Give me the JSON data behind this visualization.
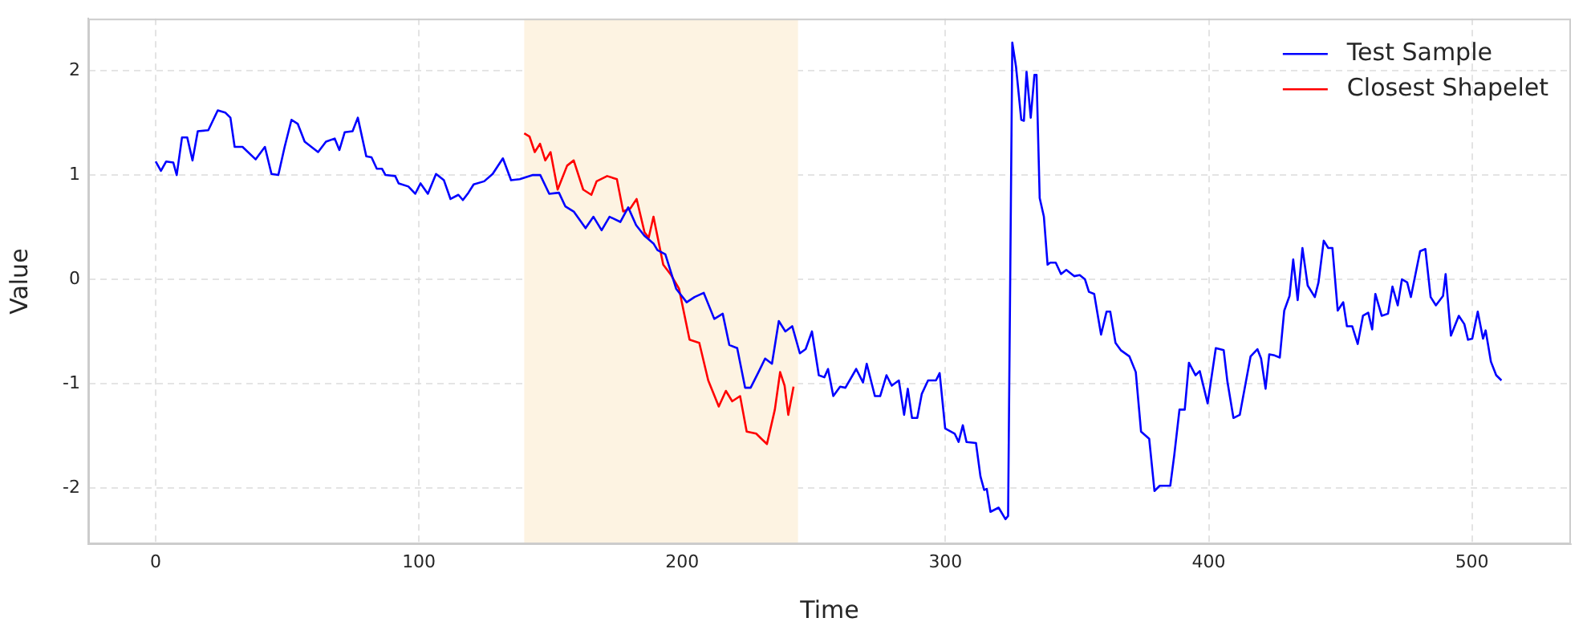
{
  "chart_data": {
    "type": "line",
    "xlabel": "Time",
    "ylabel": "Value",
    "xlim": [
      -25.6,
      537.6
    ],
    "ylim": [
      -2.54,
      2.5
    ],
    "xticks": [
      0,
      100,
      200,
      300,
      400,
      500
    ],
    "yticks": [
      -2,
      -1,
      0,
      1,
      2
    ],
    "grid": true,
    "legend": "top right",
    "marker": "none",
    "line_style": "solid",
    "bands": [
      {
        "axis": "x",
        "from": 140,
        "to": 244,
        "color": "#fdf3e2"
      }
    ],
    "series": [
      {
        "name": "Test Sample",
        "color": "#0000ff",
        "x": [
          0,
          2,
          4,
          6.7,
          8,
          10,
          12,
          14,
          16,
          20,
          23.6,
          26.4,
          28.4,
          30,
          33,
          38,
          41.5,
          44,
          46.6,
          49,
          51.6,
          54,
          56.6,
          61.7,
          64.7,
          68,
          69.8,
          71.8,
          74.8,
          76.8,
          80,
          82,
          84,
          86,
          87.3,
          91,
          92.3,
          96,
          98.6,
          100.6,
          103.4,
          106.5,
          109.5,
          112,
          115,
          116.7,
          118.8,
          120.8,
          124.8,
          128,
          131.9,
          135,
          138.3,
          143.3,
          146.1,
          149.5,
          153.2,
          155.6,
          158.8,
          163.3,
          166.3,
          169.4,
          172.4,
          176.5,
          179.5,
          182.5,
          185.6,
          189.2,
          190.6,
          193.6,
          197.7,
          201.7,
          204.7,
          208.2,
          212.2,
          215.4,
          217.9,
          220.9,
          223.9,
          226,
          229,
          231.5,
          234.1,
          236.7,
          239.2,
          241.8,
          244.7,
          246.9,
          249.3,
          251.9,
          254,
          255.4,
          257.4,
          260,
          262,
          266.1,
          268.7,
          270.1,
          273.2,
          275.2,
          277.6,
          279.6,
          282.3,
          284.3,
          285.7,
          287.3,
          289.3,
          291,
          293.4,
          296.4,
          297.8,
          299.9,
          303.5,
          305,
          306.6,
          308,
          311.6,
          313.3,
          314.7,
          315.7,
          317.1,
          320.2,
          322.8,
          323.8,
          325.4,
          326.8,
          328.8,
          329.8,
          330.8,
          332.4,
          333.8,
          334.6,
          335.8,
          337.4,
          338.8,
          339.8,
          341.9,
          343.9,
          345.9,
          348.9,
          351,
          353,
          354.5,
          356.5,
          359.1,
          361.2,
          362.6,
          364.6,
          366.6,
          369.9,
          372.3,
          374.3,
          377.4,
          379.4,
          381.4,
          385.4,
          386.9,
          388.9,
          390.9,
          392.5,
          395,
          396.6,
          399.6,
          402.7,
          405.7,
          407.1,
          409.4,
          411.8,
          415.9,
          418.5,
          419.9,
          421.6,
          423,
          425,
          427,
          428.7,
          430.7,
          432.1,
          433.8,
          435.6,
          437.6,
          440.3,
          441.7,
          443.7,
          445.4,
          447,
          449,
          451.1,
          452.5,
          454.5,
          456.6,
          458.6,
          460.6,
          462.1,
          463.3,
          465.7,
          468.1,
          469.8,
          471.8,
          473.4,
          475.4,
          476.8,
          480.3,
          482.3,
          484.3,
          486.3,
          489,
          490,
          492,
          495,
          497.1,
          498.5,
          500.1,
          502.2,
          504.2,
          505.2,
          507.2,
          509.2,
          511.2
        ],
        "values": [
          1.13,
          1.04,
          1.13,
          1.12,
          1.0,
          1.36,
          1.36,
          1.14,
          1.42,
          1.43,
          1.62,
          1.6,
          1.55,
          1.27,
          1.27,
          1.15,
          1.27,
          1.01,
          1.0,
          1.27,
          1.53,
          1.49,
          1.32,
          1.22,
          1.32,
          1.35,
          1.24,
          1.41,
          1.42,
          1.55,
          1.18,
          1.17,
          1.06,
          1.06,
          1.0,
          0.99,
          0.92,
          0.89,
          0.82,
          0.92,
          0.82,
          1.01,
          0.95,
          0.77,
          0.81,
          0.76,
          0.83,
          0.91,
          0.94,
          1.01,
          1.16,
          0.95,
          0.96,
          1.0,
          1.0,
          0.82,
          0.83,
          0.7,
          0.65,
          0.49,
          0.6,
          0.47,
          0.6,
          0.55,
          0.69,
          0.52,
          0.42,
          0.34,
          0.28,
          0.24,
          -0.09,
          -0.22,
          -0.17,
          -0.13,
          -0.38,
          -0.33,
          -0.63,
          -0.66,
          -1.04,
          -1.04,
          -0.89,
          -0.76,
          -0.81,
          -0.4,
          -0.5,
          -0.45,
          -0.71,
          -0.67,
          -0.5,
          -0.92,
          -0.94,
          -0.86,
          -1.12,
          -1.03,
          -1.04,
          -0.86,
          -0.99,
          -0.81,
          -1.12,
          -1.12,
          -0.92,
          -1.02,
          -0.97,
          -1.3,
          -1.05,
          -1.33,
          -1.33,
          -1.1,
          -0.97,
          -0.97,
          -0.9,
          -1.43,
          -1.48,
          -1.56,
          -1.4,
          -1.56,
          -1.57,
          -1.89,
          -2.02,
          -2.01,
          -2.23,
          -2.19,
          -2.3,
          -2.27,
          2.27,
          2.04,
          1.53,
          1.52,
          1.99,
          1.55,
          1.96,
          1.96,
          0.78,
          0.6,
          0.14,
          0.16,
          0.16,
          0.05,
          0.09,
          0.03,
          0.04,
          0.0,
          -0.12,
          -0.14,
          -0.53,
          -0.31,
          -0.31,
          -0.61,
          -0.68,
          -0.74,
          -0.89,
          -1.46,
          -1.53,
          -2.03,
          -1.98,
          -1.98,
          -1.69,
          -1.25,
          -1.25,
          -0.8,
          -0.92,
          -0.88,
          -1.19,
          -0.66,
          -0.68,
          -0.98,
          -1.33,
          -1.3,
          -0.74,
          -0.67,
          -0.76,
          -1.05,
          -0.72,
          -0.73,
          -0.75,
          -0.3,
          -0.16,
          0.19,
          -0.2,
          0.3,
          -0.06,
          -0.17,
          -0.03,
          0.37,
          0.3,
          0.3,
          -0.3,
          -0.22,
          -0.45,
          -0.45,
          -0.62,
          -0.35,
          -0.32,
          -0.48,
          -0.14,
          -0.35,
          -0.33,
          -0.07,
          -0.25,
          0.0,
          -0.03,
          -0.17,
          0.27,
          0.29,
          -0.17,
          -0.25,
          -0.16,
          0.05,
          -0.54,
          -0.35,
          -0.43,
          -0.58,
          -0.57,
          -0.31,
          -0.57,
          -0.49,
          -0.79,
          -0.92,
          -0.97
        ]
      },
      {
        "name": "Closest Shapelet",
        "color": "#ff0000",
        "x": [
          140,
          142,
          144,
          146,
          148,
          150,
          152.7,
          156.3,
          158.8,
          162.4,
          165.5,
          167.5,
          171.5,
          175.2,
          177.6,
          180.3,
          182.7,
          185.7,
          187.3,
          189.1,
          192.8,
          195.8,
          198.8,
          202.8,
          206.5,
          209.9,
          213.9,
          216.6,
          219,
          222,
          224.5,
          228.1,
          230.1,
          232.2,
          235.2,
          237.2,
          238.9,
          240.3,
          242.3
        ],
        "values": [
          1.4,
          1.37,
          1.22,
          1.3,
          1.14,
          1.22,
          0.86,
          1.09,
          1.14,
          0.86,
          0.81,
          0.94,
          0.99,
          0.96,
          0.65,
          0.68,
          0.77,
          0.45,
          0.4,
          0.6,
          0.14,
          0.04,
          -0.09,
          -0.58,
          -0.61,
          -0.97,
          -1.22,
          -1.07,
          -1.17,
          -1.12,
          -1.46,
          -1.48,
          -1.53,
          -1.58,
          -1.25,
          -0.89,
          -1.02,
          -1.3,
          -1.03
        ]
      }
    ]
  }
}
